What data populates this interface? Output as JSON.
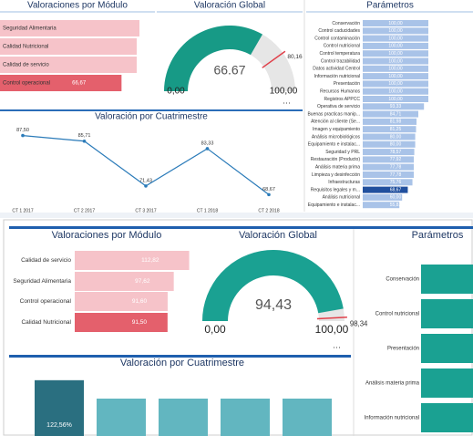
{
  "chart_data": [
    {
      "type": "hbar",
      "title": "Valoraciones por Módulo",
      "categories": [
        "Seguridad Alimentaria",
        "Calidad Nutricional",
        "Calidad de servicio",
        "Control operacional"
      ],
      "values": [
        76.5,
        75,
        75,
        66.67
      ],
      "value_labels": [
        null,
        null,
        null,
        "66,67"
      ],
      "colors": [
        "#f6c3c9",
        "#f6c3c9",
        "#f6c3c9",
        "#e4606c"
      ],
      "xlim": [
        0,
        100
      ]
    },
    {
      "type": "gauge",
      "title": "Valoración Global",
      "value": 66.67,
      "ylim": [
        0,
        100
      ],
      "ticks": [
        {
          "value": 0,
          "label": "0,00"
        },
        {
          "value": 100,
          "label": "100,00"
        }
      ],
      "target": {
        "value": 80.16,
        "label": "80,16"
      },
      "color": "#179a86"
    },
    {
      "type": "hbar-list",
      "title": "Parámetros",
      "categories": [
        "Conservación",
        "Control caducidades",
        "Control contaminación",
        "Control nutricional",
        "Control temperatura",
        "Control trazabilidad",
        "Datos actividad Centrol",
        "Información nutricional",
        "Presentación",
        "Recursos Humanos",
        "Registros APPCC",
        "Operativa de servicio",
        "Buenas practicas manip...",
        "Atención al cliente (Se...",
        "Imagen y equipamiento",
        "Análisis microbiológicos",
        "Equipamiento e instalac...",
        "Seguridad y PRL",
        "Restauración (Producto)",
        "Análisis materia prima",
        "Limpieza y desinfección",
        "Infraestructuras",
        "Requisitos legales y m...",
        "Análisis nutricional",
        "Equipamiento e instalac..."
      ],
      "values": [
        100,
        100,
        100,
        100,
        100,
        100,
        100,
        100,
        100,
        100,
        100,
        93.33,
        84.71,
        81.98,
        81.25,
        80,
        80,
        78.57,
        77.92,
        77.78,
        77.78,
        75.76,
        68.67,
        60,
        55.83
      ],
      "value_labels": [
        "100,00",
        "100,00",
        "100,00",
        "100,00",
        "100,00",
        "100,00",
        "100,00",
        "100,00",
        "100,00",
        "100,00",
        "100,00",
        "93,33",
        "84,71",
        "81,98",
        "81,25",
        "80,00",
        "80,00",
        "78,57",
        "77,92",
        "77,78",
        "77,78",
        "75,76",
        "68,67",
        "60,00",
        "55,83"
      ],
      "colors": [
        "#a9c3e8",
        "#a9c3e8",
        "#a9c3e8",
        "#a9c3e8",
        "#a9c3e8",
        "#a9c3e8",
        "#a9c3e8",
        "#a9c3e8",
        "#a9c3e8",
        "#a9c3e8",
        "#a9c3e8",
        "#a9c3e8",
        "#a9c3e8",
        "#a9c3e8",
        "#a9c3e8",
        "#a9c3e8",
        "#a9c3e8",
        "#a9c3e8",
        "#a9c3e8",
        "#a9c3e8",
        "#a9c3e8",
        "#a9c3e8",
        "#21509e",
        "#a9c3e8",
        "#a9c3e8"
      ],
      "xlim": [
        0,
        100
      ]
    },
    {
      "type": "line",
      "title": "Valoración por Cuatrimestre",
      "categories": [
        "CT 1 2017",
        "CT 2 2017",
        "CT 3 2017",
        "CT 1 2018",
        "CT 2 2018"
      ],
      "values": [
        87.5,
        85.71,
        71.43,
        83.33,
        68.67
      ],
      "value_labels": [
        "87,50",
        "85,71",
        "71,43",
        "83,33",
        "68,67"
      ],
      "ylim": [
        65,
        90
      ],
      "color": "#2b7bb9"
    },
    {
      "type": "hbar",
      "title": "Valoraciones por Módulo",
      "categories": [
        "Calidad de servicio",
        "Seguridad Alimentaria",
        "Control operacional",
        "Calidad Nutricional"
      ],
      "values": [
        112.82,
        97.62,
        91.6,
        91.5
      ],
      "value_labels": [
        "112,82",
        "97,62",
        "91,60",
        "91,50"
      ],
      "colors": [
        "#f6c3c9",
        "#f6c3c9",
        "#f6c3c9",
        "#e4606c"
      ],
      "xlim": [
        0,
        115
      ]
    },
    {
      "type": "gauge",
      "title": "Valoración Global",
      "value": 94.43,
      "value_label": "94,43",
      "ylim": [
        0,
        100
      ],
      "ticks": [
        {
          "value": 0,
          "label": "0,00"
        },
        {
          "value": 100,
          "label": "100,00"
        }
      ],
      "target": {
        "value": 98.34,
        "label": "98,34"
      },
      "color": "#1aa192"
    },
    {
      "type": "hbar-list",
      "title": "Parámetros",
      "categories": [
        "Conservación",
        "Control nutricional",
        "Presentación",
        "Análisis materia prima",
        "Información nutricional"
      ],
      "values": [
        100,
        100,
        100,
        100,
        100
      ],
      "colors": [
        "#1aa192",
        "#1aa192",
        "#1aa192",
        "#1aa192",
        "#1aa192"
      ],
      "xlim": [
        0,
        100
      ]
    },
    {
      "type": "column",
      "title": "Valoración por Cuatrimestre",
      "values": [
        122.56,
        92.84,
        92.84,
        92.84,
        92.84
      ],
      "value_labels": [
        "122,56%",
        null,
        null,
        null,
        null
      ],
      "colors": [
        "#2a6f80",
        "#62b6c0",
        "#62b6c0",
        "#62b6c0",
        "#62b6c0"
      ],
      "ylim": [
        0,
        140
      ]
    }
  ]
}
